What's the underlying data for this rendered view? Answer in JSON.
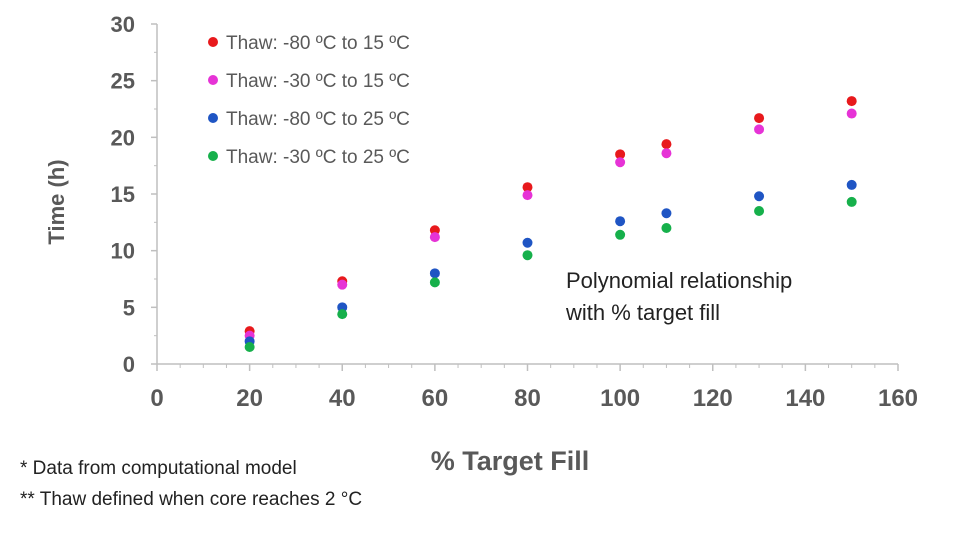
{
  "chart_data": {
    "type": "scatter",
    "xlabel": "% Target Fill",
    "ylabel": "Time  (h)",
    "xlim": [
      0,
      160
    ],
    "ylim": [
      0,
      30
    ],
    "xticks": [
      "0",
      "20",
      "40",
      "60",
      "80",
      "100",
      "120",
      "140",
      "160"
    ],
    "yticks": [
      "0",
      "5",
      "10",
      "15",
      "20",
      "25",
      "30"
    ],
    "grid": false,
    "legend_position": "top-left",
    "series": [
      {
        "name": "Thaw: -80 ºC to 15 ºC",
        "color": "#e8191c",
        "x": [
          20,
          40,
          60,
          80,
          100,
          110,
          130,
          150
        ],
        "y": [
          2.9,
          7.3,
          11.8,
          15.6,
          18.5,
          19.4,
          21.7,
          23.2
        ]
      },
      {
        "name": "Thaw: -30 ºC to 15 ºC",
        "color": "#e633d6",
        "x": [
          20,
          40,
          60,
          80,
          100,
          110,
          130,
          150
        ],
        "y": [
          2.5,
          7.0,
          11.2,
          14.9,
          17.8,
          18.6,
          20.7,
          22.1
        ]
      },
      {
        "name": "Thaw: -80 ºC to 25 ºC",
        "color": "#1f55c4",
        "x": [
          20,
          40,
          60,
          80,
          100,
          110,
          130,
          150
        ],
        "y": [
          2.0,
          5.0,
          8.0,
          10.7,
          12.6,
          13.3,
          14.8,
          15.8
        ]
      },
      {
        "name": "Thaw: -30 ºC to 25 ºC",
        "color": "#16b04b",
        "x": [
          20,
          40,
          60,
          80,
          100,
          110,
          130,
          150
        ],
        "y": [
          1.5,
          4.4,
          7.2,
          9.6,
          11.4,
          12.0,
          13.5,
          14.3
        ]
      }
    ],
    "annotation": [
      "Polynomial relationship",
      "with % target fill"
    ]
  },
  "footnotes": [
    "* Data from computational model",
    "** Thaw defined when core reaches 2 °C"
  ]
}
